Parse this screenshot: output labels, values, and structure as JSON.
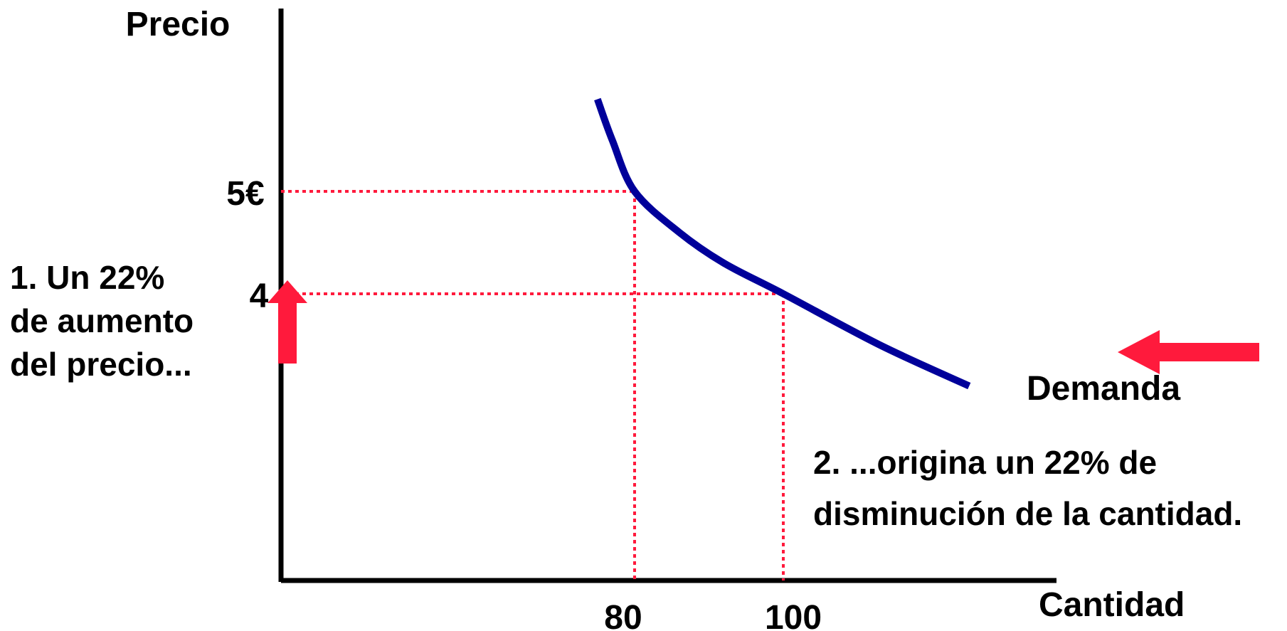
{
  "chart_data": {
    "type": "line",
    "title": "",
    "xlabel": "Cantidad",
    "ylabel": "Precio",
    "x_ticks": [
      "80",
      "100"
    ],
    "y_ticks": [
      "5€",
      "4"
    ],
    "series": [
      {
        "name": "Demanda",
        "points": [
          {
            "x": 75,
            "y": 5.9
          },
          {
            "x": 77,
            "y": 5.5
          },
          {
            "x": 80,
            "y": 5.0
          },
          {
            "x": 86,
            "y": 4.6
          },
          {
            "x": 92,
            "y": 4.3
          },
          {
            "x": 100,
            "y": 4.0
          },
          {
            "x": 113,
            "y": 3.5
          },
          {
            "x": 125,
            "y": 3.1
          }
        ]
      }
    ],
    "reference_points": [
      {
        "x": 80,
        "y": 5
      },
      {
        "x": 100,
        "y": 4
      }
    ],
    "annotations": {
      "left_lines": [
        "1.  Un 22%",
        "de aumento",
        "del precio..."
      ],
      "right_lines": [
        "2. ...origina un 22% de",
        "disminución de la cantidad."
      ]
    },
    "colors": {
      "axis": "#000000",
      "curve": "#00009a",
      "guides": "#ff1a3c",
      "arrow": "#ff1a3c"
    }
  }
}
